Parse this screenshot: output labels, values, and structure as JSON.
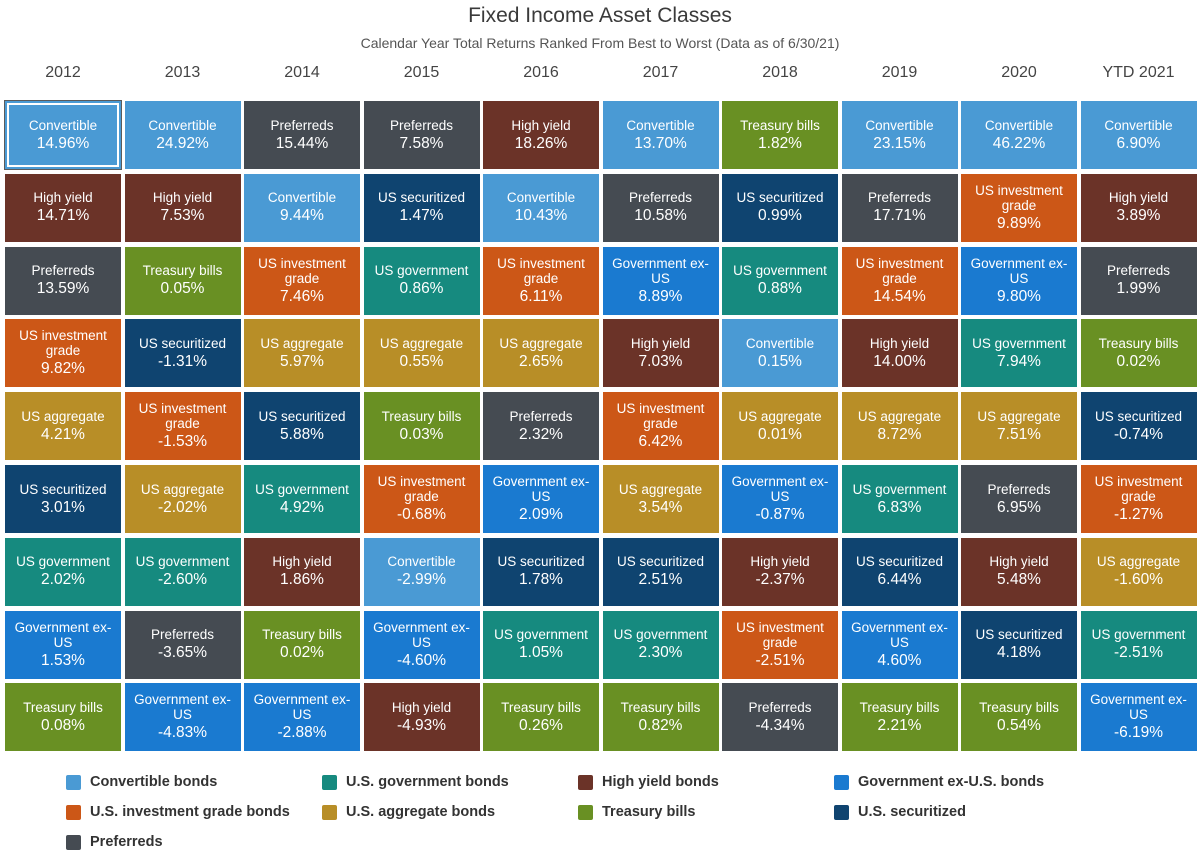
{
  "title": "Fixed Income Asset Classes",
  "subtitle": "Calendar Year Total Returns Ranked From Best to Worst (Data as of 6/30/21)",
  "colors": {
    "convertible": "#4a9ad4",
    "usgov": "#168a7f",
    "highyield": "#6b3328",
    "govexus": "#1a7ad0",
    "usig": "#cc5717",
    "usagg": "#b88e27",
    "tbills": "#699023",
    "securitized": "#0f4470",
    "preferreds": "#454b52"
  },
  "legend": [
    {
      "key": "convertible",
      "label": "Convertible bonds"
    },
    {
      "key": "usgov",
      "label": "U.S. government bonds"
    },
    {
      "key": "highyield",
      "label": "High yield bonds"
    },
    {
      "key": "govexus",
      "label": "Government ex-U.S. bonds"
    },
    {
      "key": "usig",
      "label": "U.S. investment grade bonds"
    },
    {
      "key": "usagg",
      "label": "U.S. aggregate bonds"
    },
    {
      "key": "tbills",
      "label": "Treasury bills"
    },
    {
      "key": "securitized",
      "label": "U.S. securitized"
    },
    {
      "key": "preferreds",
      "label": "Preferreds"
    }
  ],
  "chart_data": {
    "type": "table",
    "years": [
      "2012",
      "2013",
      "2014",
      "2015",
      "2016",
      "2017",
      "2018",
      "2019",
      "2020",
      "YTD 2021"
    ],
    "columns": [
      [
        {
          "key": "convertible",
          "label": "Convertible",
          "value": "14.96%"
        },
        {
          "key": "highyield",
          "label": "High yield",
          "value": "14.71%"
        },
        {
          "key": "preferreds",
          "label": "Preferreds",
          "value": "13.59%"
        },
        {
          "key": "usig",
          "label": "US investment grade",
          "value": "9.82%"
        },
        {
          "key": "usagg",
          "label": "US aggregate",
          "value": "4.21%"
        },
        {
          "key": "securitized",
          "label": "US securitized",
          "value": "3.01%"
        },
        {
          "key": "usgov",
          "label": "US government",
          "value": "2.02%"
        },
        {
          "key": "govexus",
          "label": "Government ex-US",
          "value": "1.53%"
        },
        {
          "key": "tbills",
          "label": "Treasury bills",
          "value": "0.08%"
        }
      ],
      [
        {
          "key": "convertible",
          "label": "Convertible",
          "value": "24.92%"
        },
        {
          "key": "highyield",
          "label": "High yield",
          "value": "7.53%"
        },
        {
          "key": "tbills",
          "label": "Treasury bills",
          "value": "0.05%"
        },
        {
          "key": "securitized",
          "label": "US securitized",
          "value": "-1.31%"
        },
        {
          "key": "usig",
          "label": "US investment grade",
          "value": "-1.53%"
        },
        {
          "key": "usagg",
          "label": "US aggregate",
          "value": "-2.02%"
        },
        {
          "key": "usgov",
          "label": "US government",
          "value": "-2.60%"
        },
        {
          "key": "preferreds",
          "label": "Preferreds",
          "value": "-3.65%"
        },
        {
          "key": "govexus",
          "label": "Government ex-US",
          "value": "-4.83%"
        }
      ],
      [
        {
          "key": "preferreds",
          "label": "Preferreds",
          "value": "15.44%"
        },
        {
          "key": "convertible",
          "label": "Convertible",
          "value": "9.44%"
        },
        {
          "key": "usig",
          "label": "US investment grade",
          "value": "7.46%"
        },
        {
          "key": "usagg",
          "label": "US aggregate",
          "value": "5.97%"
        },
        {
          "key": "securitized",
          "label": "US securitized",
          "value": "5.88%"
        },
        {
          "key": "usgov",
          "label": "US government",
          "value": "4.92%"
        },
        {
          "key": "highyield",
          "label": "High yield",
          "value": "1.86%"
        },
        {
          "key": "tbills",
          "label": "Treasury bills",
          "value": "0.02%"
        },
        {
          "key": "govexus",
          "label": "Government ex-US",
          "value": "-2.88%"
        }
      ],
      [
        {
          "key": "preferreds",
          "label": "Preferreds",
          "value": "7.58%"
        },
        {
          "key": "securitized",
          "label": "US securitized",
          "value": "1.47%"
        },
        {
          "key": "usgov",
          "label": "US government",
          "value": "0.86%"
        },
        {
          "key": "usagg",
          "label": "US aggregate",
          "value": "0.55%"
        },
        {
          "key": "tbills",
          "label": "Treasury bills",
          "value": "0.03%"
        },
        {
          "key": "usig",
          "label": "US investment grade",
          "value": "-0.68%"
        },
        {
          "key": "convertible",
          "label": "Convertible",
          "value": "-2.99%"
        },
        {
          "key": "govexus",
          "label": "Government ex-US",
          "value": "-4.60%"
        },
        {
          "key": "highyield",
          "label": "High yield",
          "value": "-4.93%"
        }
      ],
      [
        {
          "key": "highyield",
          "label": "High yield",
          "value": "18.26%"
        },
        {
          "key": "convertible",
          "label": "Convertible",
          "value": "10.43%"
        },
        {
          "key": "usig",
          "label": "US investment grade",
          "value": "6.11%"
        },
        {
          "key": "usagg",
          "label": "US aggregate",
          "value": "2.65%"
        },
        {
          "key": "preferreds",
          "label": "Preferreds",
          "value": "2.32%"
        },
        {
          "key": "govexus",
          "label": "Government ex-US",
          "value": "2.09%"
        },
        {
          "key": "securitized",
          "label": "US securitized",
          "value": "1.78%"
        },
        {
          "key": "usgov",
          "label": "US government",
          "value": "1.05%"
        },
        {
          "key": "tbills",
          "label": "Treasury bills",
          "value": "0.26%"
        }
      ],
      [
        {
          "key": "convertible",
          "label": "Convertible",
          "value": "13.70%"
        },
        {
          "key": "preferreds",
          "label": "Preferreds",
          "value": "10.58%"
        },
        {
          "key": "govexus",
          "label": "Government ex-US",
          "value": "8.89%"
        },
        {
          "key": "highyield",
          "label": "High yield",
          "value": "7.03%"
        },
        {
          "key": "usig",
          "label": "US investment grade",
          "value": "6.42%"
        },
        {
          "key": "usagg",
          "label": "US aggregate",
          "value": "3.54%"
        },
        {
          "key": "securitized",
          "label": "US securitized",
          "value": "2.51%"
        },
        {
          "key": "usgov",
          "label": "US government",
          "value": "2.30%"
        },
        {
          "key": "tbills",
          "label": "Treasury bills",
          "value": "0.82%"
        }
      ],
      [
        {
          "key": "tbills",
          "label": "Treasury bills",
          "value": "1.82%"
        },
        {
          "key": "securitized",
          "label": "US securitized",
          "value": "0.99%"
        },
        {
          "key": "usgov",
          "label": "US government",
          "value": "0.88%"
        },
        {
          "key": "convertible",
          "label": "Convertible",
          "value": "0.15%"
        },
        {
          "key": "usagg",
          "label": "US aggregate",
          "value": "0.01%"
        },
        {
          "key": "govexus",
          "label": "Government ex-US",
          "value": "-0.87%"
        },
        {
          "key": "highyield",
          "label": "High yield",
          "value": "-2.37%"
        },
        {
          "key": "usig",
          "label": "US investment grade",
          "value": "-2.51%"
        },
        {
          "key": "preferreds",
          "label": "Preferreds",
          "value": "-4.34%"
        }
      ],
      [
        {
          "key": "convertible",
          "label": "Convertible",
          "value": "23.15%"
        },
        {
          "key": "preferreds",
          "label": "Preferreds",
          "value": "17.71%"
        },
        {
          "key": "usig",
          "label": "US investment grade",
          "value": "14.54%"
        },
        {
          "key": "highyield",
          "label": "High yield",
          "value": "14.00%"
        },
        {
          "key": "usagg",
          "label": "US aggregate",
          "value": "8.72%"
        },
        {
          "key": "usgov",
          "label": "US government",
          "value": "6.83%"
        },
        {
          "key": "securitized",
          "label": "US securitized",
          "value": "6.44%"
        },
        {
          "key": "govexus",
          "label": "Government ex-US",
          "value": "4.60%"
        },
        {
          "key": "tbills",
          "label": "Treasury bills",
          "value": "2.21%"
        }
      ],
      [
        {
          "key": "convertible",
          "label": "Convertible",
          "value": "46.22%"
        },
        {
          "key": "usig",
          "label": "US investment grade",
          "value": "9.89%"
        },
        {
          "key": "govexus",
          "label": "Government ex-US",
          "value": "9.80%"
        },
        {
          "key": "usgov",
          "label": "US government",
          "value": "7.94%"
        },
        {
          "key": "usagg",
          "label": "US aggregate",
          "value": "7.51%"
        },
        {
          "key": "preferreds",
          "label": "Preferreds",
          "value": "6.95%"
        },
        {
          "key": "highyield",
          "label": "High yield",
          "value": "5.48%"
        },
        {
          "key": "securitized",
          "label": "US securitized",
          "value": "4.18%"
        },
        {
          "key": "tbills",
          "label": "Treasury bills",
          "value": "0.54%"
        }
      ],
      [
        {
          "key": "convertible",
          "label": "Convertible",
          "value": "6.90%"
        },
        {
          "key": "highyield",
          "label": "High yield",
          "value": "3.89%"
        },
        {
          "key": "preferreds",
          "label": "Preferreds",
          "value": "1.99%"
        },
        {
          "key": "tbills",
          "label": "Treasury bills",
          "value": "0.02%"
        },
        {
          "key": "securitized",
          "label": "US securitized",
          "value": "-0.74%"
        },
        {
          "key": "usig",
          "label": "US investment grade",
          "value": "-1.27%"
        },
        {
          "key": "usagg",
          "label": "US aggregate",
          "value": "-1.60%"
        },
        {
          "key": "usgov",
          "label": "US government",
          "value": "-2.51%"
        },
        {
          "key": "govexus",
          "label": "Government ex-US",
          "value": "-6.19%"
        }
      ]
    ]
  }
}
